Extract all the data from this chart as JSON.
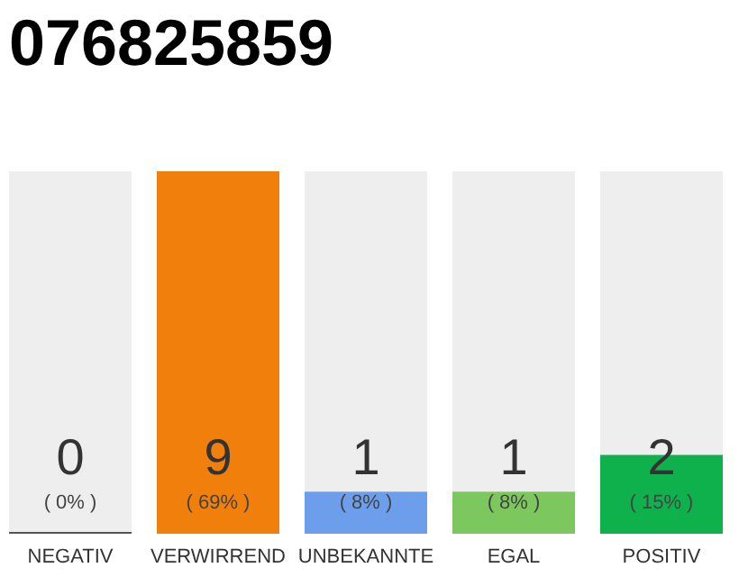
{
  "chart_data": {
    "type": "bar",
    "title": "076825859",
    "categories": [
      "NEGATIV",
      "VERWIRREND",
      "UNBEKANNTE",
      "EGAL",
      "POSITIV"
    ],
    "values": [
      0,
      69,
      8,
      8,
      15
    ],
    "colors": [
      "#555555",
      "#f07f0b",
      "#6d9eeb",
      "#7cc85f",
      "#0fb14c"
    ],
    "value_labels": [
      "( 0% )",
      "( 69% )",
      "( 8% )",
      "( 8% )",
      "( 15% )"
    ],
    "annotations": [
      "0",
      "9",
      "1",
      "1",
      "2"
    ]
  }
}
